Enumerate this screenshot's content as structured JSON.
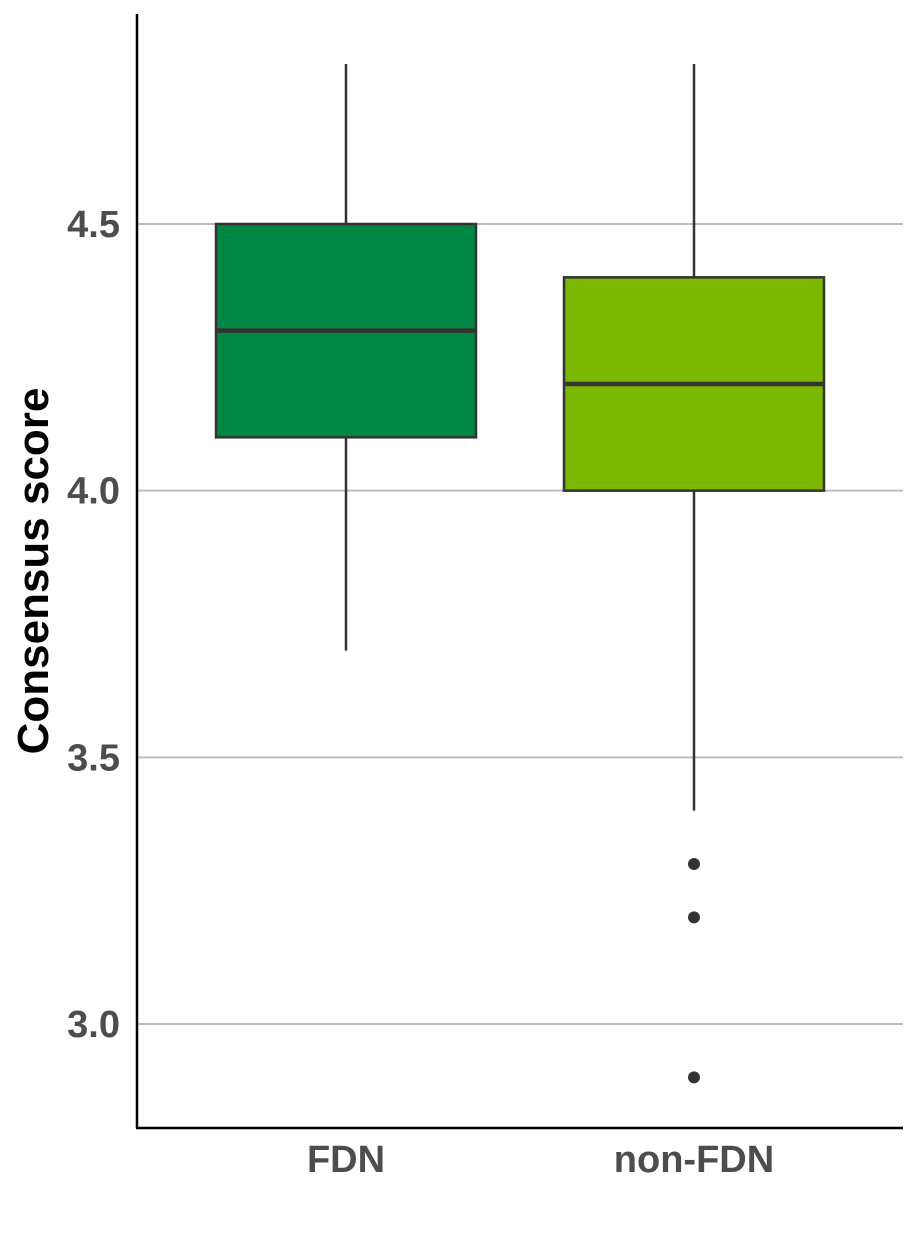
{
  "chart_data": {
    "type": "boxplot",
    "title": "",
    "xlabel": "",
    "ylabel": "Consensus score",
    "ylim": [
      2.8,
      4.9
    ],
    "yticks": [
      3.0,
      3.5,
      4.0,
      4.5
    ],
    "ytick_labels": [
      "3.0",
      "3.5",
      "4.0",
      "4.5"
    ],
    "grid": "horizontal major lines",
    "categories": [
      "FDN",
      "non-FDN"
    ],
    "boxes": [
      {
        "category": "FDN",
        "whisker_low": 3.7,
        "q1": 4.1,
        "median": 4.3,
        "q3": 4.5,
        "whisker_high": 4.8,
        "outliers": [],
        "color": "#008744"
      },
      {
        "category": "non-FDN",
        "whisker_low": 3.4,
        "q1": 4.0,
        "median": 4.2,
        "q3": 4.4,
        "whisker_high": 4.8,
        "outliers": [
          3.3,
          3.2,
          2.9
        ],
        "color": "#7ab800"
      }
    ]
  }
}
